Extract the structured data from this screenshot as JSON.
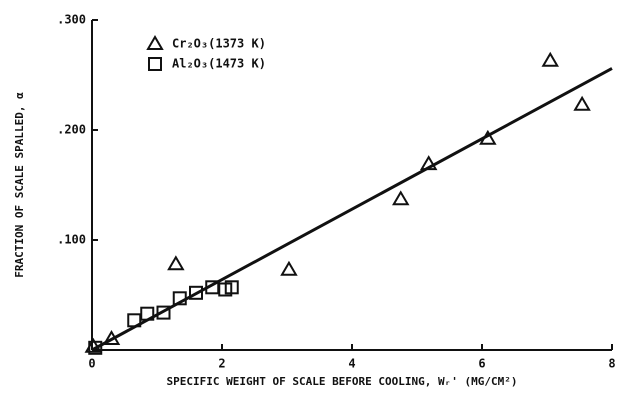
{
  "chart_data": {
    "type": "scatter",
    "xlabel": "SPECIFIC WEIGHT OF SCALE BEFORE COOLING, Wᵣ' (MG/CM²)",
    "ylabel": "FRACTION OF SCALE SPALLED, α",
    "xlim": [
      0,
      8
    ],
    "xticks": [
      0,
      2,
      4,
      6,
      8
    ],
    "ylim": [
      0,
      0.3
    ],
    "yticks": [
      {
        "value": 0.1,
        "label": ".100"
      },
      {
        "value": 0.2,
        "label": ".200"
      },
      {
        "value": 0.3,
        "label": ".300"
      }
    ],
    "series": [
      {
        "name": "Cr₂O₃(1373 K)",
        "color": "#111111",
        "marker": "triangle",
        "x": [
          0.02,
          0.3,
          1.29,
          3.03,
          4.75,
          5.18,
          6.09,
          7.05,
          7.54
        ],
        "values": [
          0.003,
          0.01,
          0.078,
          0.073,
          0.137,
          0.169,
          0.192,
          0.263,
          0.223
        ]
      },
      {
        "name": "Al₂O₃(1473 K)",
        "color": "#111111",
        "marker": "square",
        "x": [
          0.05,
          0.65,
          0.85,
          1.1,
          1.35,
          1.6,
          1.85,
          2.05,
          2.15
        ],
        "values": [
          0.002,
          0.027,
          0.033,
          0.034,
          0.047,
          0.052,
          0.057,
          0.055,
          0.057
        ]
      }
    ],
    "fit_line": {
      "color": "#111111",
      "x": [
        0,
        8
      ],
      "values": [
        0,
        0.256
      ]
    }
  }
}
